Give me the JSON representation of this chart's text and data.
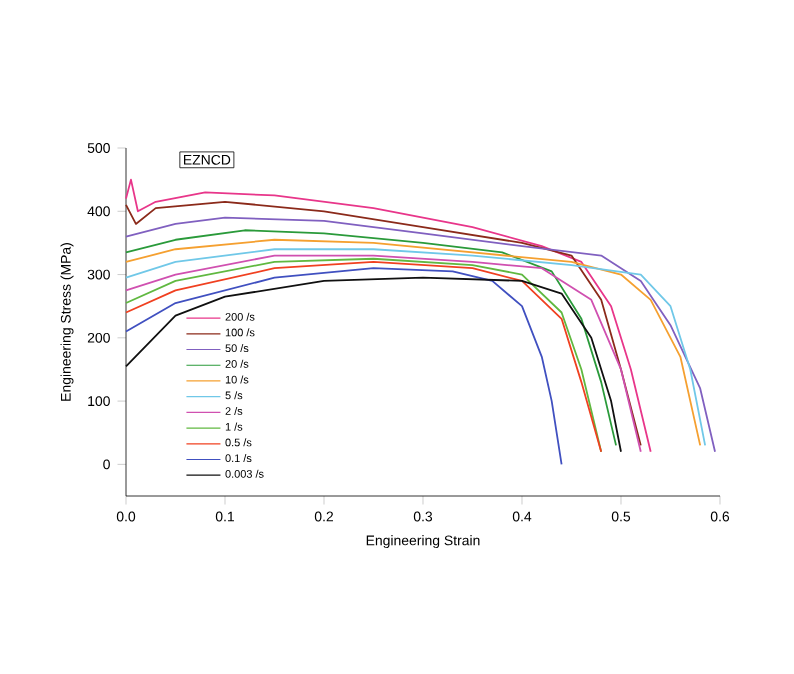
{
  "chart_data": {
    "type": "line",
    "xlabel": "Engineering Strain",
    "ylabel": "Engineering Stress (MPa)",
    "annotations": [
      "EZNCD"
    ],
    "xlim": [
      0,
      0.6
    ],
    "ylim": [
      -50,
      500
    ],
    "xticks": [
      {
        "value": 0,
        "label": "0.0"
      },
      0.1,
      0.2,
      0.3,
      0.4,
      0.5,
      0.6
    ],
    "yticks": [
      0,
      100,
      200,
      300,
      400,
      500
    ],
    "grid": false,
    "legend": "bottom",
    "marker": "none",
    "line_style": "solid",
    "series": [
      {
        "name": "200 /s",
        "color": "#e8368a",
        "x": [
          0,
          0.005,
          0.012,
          0.03,
          0.08,
          0.15,
          0.25,
          0.35,
          0.42,
          0.46,
          0.49,
          0.51,
          0.53
        ],
        "values": [
          420,
          450,
          400,
          415,
          430,
          425,
          405,
          375,
          345,
          320,
          250,
          150,
          20
        ]
      },
      {
        "name": "100 /s",
        "color": "#8b2a1a",
        "x": [
          0,
          0.01,
          0.03,
          0.1,
          0.2,
          0.3,
          0.4,
          0.45,
          0.48,
          0.5,
          0.52
        ],
        "values": [
          410,
          380,
          405,
          415,
          400,
          375,
          350,
          330,
          260,
          150,
          30
        ]
      },
      {
        "name": "50 /s",
        "color": "#8060c0",
        "x": [
          0,
          0.05,
          0.1,
          0.2,
          0.3,
          0.4,
          0.48,
          0.52,
          0.55,
          0.58,
          0.595
        ],
        "values": [
          360,
          380,
          390,
          385,
          365,
          345,
          330,
          290,
          220,
          120,
          20
        ]
      },
      {
        "name": "20 /s",
        "color": "#2a9a3a",
        "x": [
          0,
          0.05,
          0.12,
          0.2,
          0.3,
          0.38,
          0.43,
          0.46,
          0.48,
          0.495
        ],
        "values": [
          335,
          355,
          370,
          365,
          350,
          335,
          305,
          230,
          130,
          30
        ]
      },
      {
        "name": "10 /s",
        "color": "#f5a030",
        "x": [
          0,
          0.05,
          0.15,
          0.25,
          0.35,
          0.45,
          0.5,
          0.53,
          0.56,
          0.58
        ],
        "values": [
          320,
          340,
          355,
          350,
          335,
          320,
          300,
          260,
          170,
          30
        ]
      },
      {
        "name": "5 /s",
        "color": "#70c8e8",
        "x": [
          0,
          0.05,
          0.15,
          0.25,
          0.35,
          0.45,
          0.52,
          0.55,
          0.57,
          0.585
        ],
        "values": [
          295,
          320,
          340,
          340,
          330,
          315,
          300,
          250,
          150,
          30
        ]
      },
      {
        "name": "2 /s",
        "color": "#d050b0",
        "x": [
          0,
          0.05,
          0.15,
          0.25,
          0.35,
          0.42,
          0.47,
          0.5,
          0.52
        ],
        "values": [
          275,
          300,
          330,
          330,
          320,
          310,
          260,
          150,
          20
        ]
      },
      {
        "name": "1 /s",
        "color": "#60b840",
        "x": [
          0,
          0.05,
          0.15,
          0.25,
          0.35,
          0.4,
          0.44,
          0.46,
          0.48
        ],
        "values": [
          255,
          290,
          320,
          325,
          315,
          300,
          240,
          150,
          20
        ]
      },
      {
        "name": "0.5 /s",
        "color": "#f04020",
        "x": [
          0,
          0.05,
          0.15,
          0.25,
          0.35,
          0.4,
          0.44,
          0.46,
          0.48
        ],
        "values": [
          240,
          275,
          310,
          320,
          310,
          290,
          230,
          130,
          20
        ]
      },
      {
        "name": "0.1 /s",
        "color": "#4050c0",
        "x": [
          0,
          0.05,
          0.15,
          0.25,
          0.33,
          0.37,
          0.4,
          0.42,
          0.43,
          0.44
        ],
        "values": [
          210,
          255,
          295,
          310,
          305,
          290,
          250,
          170,
          100,
          0
        ]
      },
      {
        "name": "0.003 /s",
        "color": "#101010",
        "x": [
          0,
          0.05,
          0.1,
          0.2,
          0.3,
          0.4,
          0.44,
          0.47,
          0.49,
          0.5
        ],
        "values": [
          155,
          235,
          265,
          290,
          295,
          290,
          270,
          200,
          100,
          20
        ]
      }
    ]
  }
}
